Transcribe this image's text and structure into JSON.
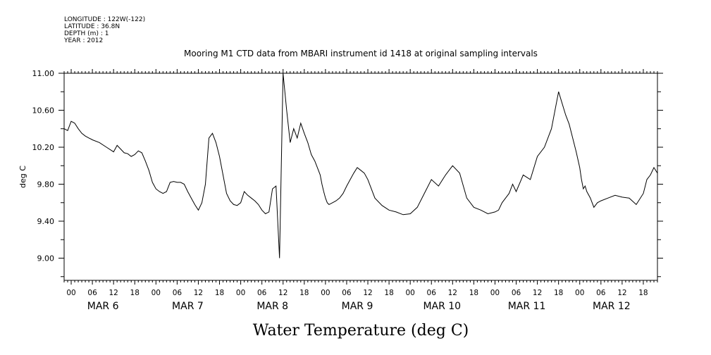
{
  "meta": {
    "longitude": "LONGITUDE : 122W(-122)",
    "latitude": "LATITUDE : 36.8N",
    "depth": "DEPTH (m) : 1",
    "year": "YEAR : 2012"
  },
  "chart_data": {
    "type": "line",
    "title": "Mooring M1 CTD data from MBARI instrument id 1418 at original sampling intervals",
    "xlabel": "Water Temperature (deg C)",
    "ylabel": "deg C",
    "ylim": [
      8.76,
      11.0
    ],
    "xlim_hours": [
      -2,
      166
    ],
    "y_ticks": [
      9.0,
      9.4,
      9.8,
      10.2,
      10.6,
      11.0
    ],
    "y_tick_labels": [
      "9.00",
      "9.40",
      "9.80",
      "10.20",
      "10.60",
      "11.00"
    ],
    "x_hour_labels": [
      "00",
      "06",
      "12",
      "18",
      "00",
      "06",
      "12",
      "18",
      "00",
      "06",
      "12",
      "18",
      "00",
      "06",
      "12",
      "18",
      "00",
      "06",
      "12",
      "18",
      "00",
      "06",
      "12",
      "18",
      "00",
      "06",
      "12",
      "18"
    ],
    "x_day_labels": [
      "MAR 6",
      "MAR 7",
      "MAR 8",
      "MAR 9",
      "MAR 10",
      "MAR 11",
      "MAR 12"
    ],
    "grid": false,
    "series": [
      {
        "x": [
          -2,
          -1,
          0,
          1,
          2,
          3,
          4,
          5,
          6,
          8,
          10,
          12,
          13,
          14,
          15,
          16,
          17,
          18,
          19,
          20,
          21,
          22,
          23,
          24,
          25,
          26,
          27,
          28,
          29,
          30,
          31,
          32,
          33,
          34,
          35,
          36,
          37,
          38,
          39,
          40,
          41,
          42,
          43,
          44,
          45,
          46,
          47,
          48,
          49,
          50,
          51,
          52,
          53,
          54,
          55,
          56,
          57,
          58,
          59,
          60,
          61,
          62,
          63,
          64,
          65,
          66,
          67,
          68,
          69,
          70,
          70.5,
          71,
          71.5,
          72,
          72.5,
          73,
          74,
          75,
          76,
          77,
          78,
          79,
          80,
          81,
          82,
          83,
          84,
          85,
          86,
          88,
          90,
          92,
          94,
          96,
          98,
          100,
          102,
          104,
          106,
          108,
          110,
          112,
          114,
          116,
          118,
          120,
          121,
          122,
          123,
          124,
          125,
          126,
          128,
          130,
          132,
          134,
          136,
          138,
          140,
          141,
          142,
          143,
          144,
          144.5,
          145,
          145.5,
          146,
          147,
          148,
          149,
          150,
          152,
          154,
          156,
          158,
          160,
          162,
          163,
          164,
          165,
          166
        ],
        "values": [
          10.4,
          10.38,
          10.48,
          10.46,
          10.4,
          10.35,
          10.32,
          10.3,
          10.28,
          10.25,
          10.2,
          10.15,
          10.22,
          10.18,
          10.14,
          10.13,
          10.1,
          10.12,
          10.16,
          10.14,
          10.05,
          9.95,
          9.82,
          9.75,
          9.72,
          9.7,
          9.72,
          9.82,
          9.83,
          9.82,
          9.82,
          9.8,
          9.72,
          9.65,
          9.58,
          9.52,
          9.6,
          9.8,
          10.3,
          10.35,
          10.25,
          10.1,
          9.9,
          9.7,
          9.62,
          9.58,
          9.57,
          9.6,
          9.72,
          9.68,
          9.65,
          9.62,
          9.58,
          9.52,
          9.48,
          9.5,
          9.75,
          9.78,
          9.0,
          11.0,
          10.6,
          10.25,
          10.4,
          10.3,
          10.46,
          10.35,
          10.25,
          10.12,
          10.05,
          9.95,
          9.9,
          9.8,
          9.72,
          9.65,
          9.6,
          9.58,
          9.6,
          9.62,
          9.65,
          9.7,
          9.78,
          9.85,
          9.92,
          9.98,
          9.95,
          9.92,
          9.85,
          9.75,
          9.65,
          9.57,
          9.52,
          9.5,
          9.47,
          9.48,
          9.55,
          9.7,
          9.85,
          9.78,
          9.9,
          10.0,
          9.92,
          9.65,
          9.55,
          9.52,
          9.48,
          9.5,
          9.52,
          9.6,
          9.65,
          9.7,
          9.8,
          9.72,
          9.9,
          9.85,
          10.1,
          10.2,
          10.4,
          10.8,
          10.55,
          10.45,
          10.3,
          10.15,
          9.98,
          9.85,
          9.75,
          9.78,
          9.72,
          9.65,
          9.55,
          9.6,
          9.62,
          9.65,
          9.68,
          9.66,
          9.65,
          9.58,
          9.7,
          9.85,
          9.9,
          9.98,
          9.92
        ]
      }
    ]
  }
}
